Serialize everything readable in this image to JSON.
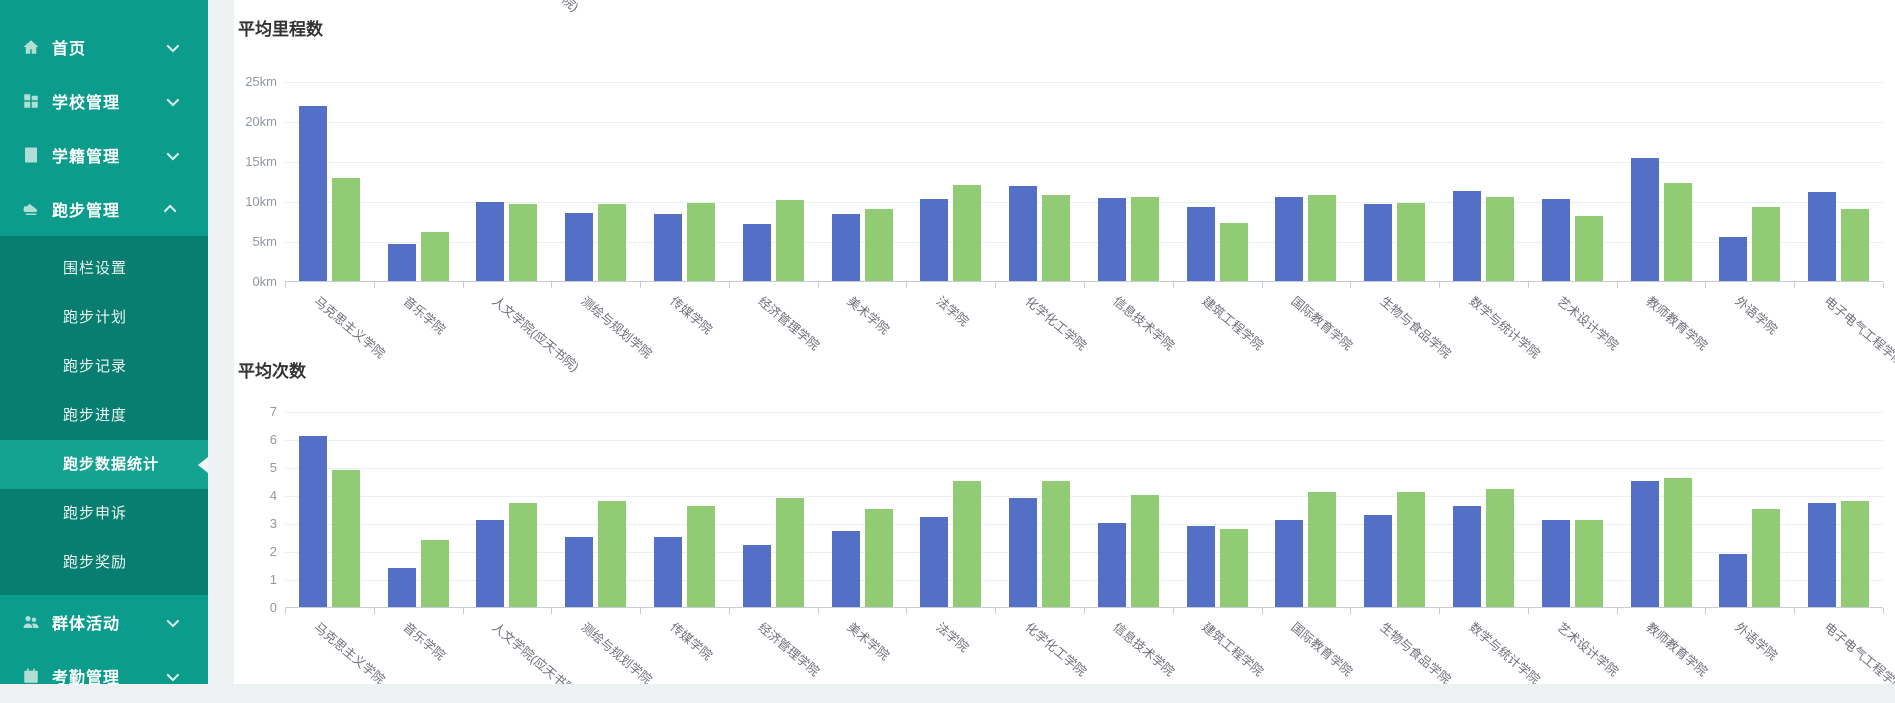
{
  "sidebar": {
    "items": [
      {
        "label": "首页",
        "icon": "home-icon",
        "chevron": "down"
      },
      {
        "label": "学校管理",
        "icon": "school-icon",
        "chevron": "down"
      },
      {
        "label": "学籍管理",
        "icon": "roster-icon",
        "chevron": "down"
      },
      {
        "label": "跑步管理",
        "icon": "running-icon",
        "chevron": "up",
        "children": [
          "围栏设置",
          "跑步计划",
          "跑步记录",
          "跑步进度",
          "跑步数据统计",
          "跑步申诉",
          "跑步奖励"
        ],
        "active_child": "跑步数据统计"
      },
      {
        "label": "群体活动",
        "icon": "group-icon",
        "chevron": "down"
      },
      {
        "label": "考勤管理",
        "icon": "attendance-icon",
        "chevron": "down"
      }
    ]
  },
  "top_fragment": "院)",
  "colors": {
    "bar_blue": "#5470c6",
    "bar_green": "#91cc75",
    "sidebar": "#0b9c8c",
    "submenu": "#077e6f",
    "active": "#14a291"
  },
  "chart_data": [
    {
      "type": "bar",
      "title": "平均里程数",
      "unit": "km",
      "ylim": [
        0,
        25
      ],
      "yticks": [
        "25km",
        "20km",
        "15km",
        "10km",
        "5km",
        "0km"
      ],
      "grid": true,
      "legend_position": "none",
      "categories": [
        "马克思主义学院",
        "音乐学院",
        "人文学院(应天书院)",
        "测绘与规划学院",
        "传媒学院",
        "经济管理学院",
        "美术学院",
        "法学院",
        "化学化工学院",
        "信息技术学院",
        "建筑工程学院",
        "国际教育学院",
        "生物与食品学院",
        "数学与统计学院",
        "艺术设计学院",
        "教师教育学院",
        "外语学院",
        "电子电气工程学院"
      ],
      "series": [
        {
          "name": "blue-series",
          "color": "#5470c6",
          "values": [
            21.9,
            4.6,
            9.9,
            8.5,
            8.4,
            7.1,
            8.4,
            10.2,
            11.9,
            10.4,
            9.2,
            10.5,
            9.6,
            11.3,
            10.3,
            15.4,
            5.5,
            11.1
          ]
        },
        {
          "name": "green-series",
          "color": "#91cc75",
          "values": [
            12.9,
            6.1,
            9.6,
            9.6,
            9.7,
            10.1,
            9.0,
            12.0,
            10.7,
            10.5,
            7.2,
            10.8,
            9.7,
            10.5,
            8.1,
            12.3,
            9.2,
            9.0
          ]
        }
      ]
    },
    {
      "type": "bar",
      "title": "平均次数",
      "unit": "",
      "ylim": [
        0,
        7
      ],
      "yticks": [
        "7",
        "6",
        "5",
        "4",
        "3",
        "2",
        "1",
        "0"
      ],
      "grid": true,
      "legend_position": "none",
      "categories": [
        "马克思主义学院",
        "音乐学院",
        "人文学院(应天书院)",
        "测绘与规划学院",
        "传媒学院",
        "经济管理学院",
        "美术学院",
        "法学院",
        "化学化工学院",
        "信息技术学院",
        "建筑工程学院",
        "国际教育学院",
        "生物与食品学院",
        "数学与统计学院",
        "艺术设计学院",
        "教师教育学院",
        "外语学院",
        "电子电气工程学院"
      ],
      "series": [
        {
          "name": "blue-series",
          "color": "#5470c6",
          "values": [
            6.1,
            1.4,
            3.1,
            2.5,
            2.5,
            2.2,
            2.7,
            3.2,
            3.9,
            3.0,
            2.9,
            3.1,
            3.3,
            3.6,
            3.1,
            4.5,
            1.9,
            3.7
          ]
        },
        {
          "name": "green-series",
          "color": "#91cc75",
          "values": [
            4.9,
            2.4,
            3.7,
            3.8,
            3.6,
            3.9,
            3.5,
            4.5,
            4.5,
            4.0,
            2.8,
            4.1,
            4.1,
            4.2,
            3.1,
            4.6,
            3.5,
            3.8
          ]
        }
      ]
    }
  ]
}
